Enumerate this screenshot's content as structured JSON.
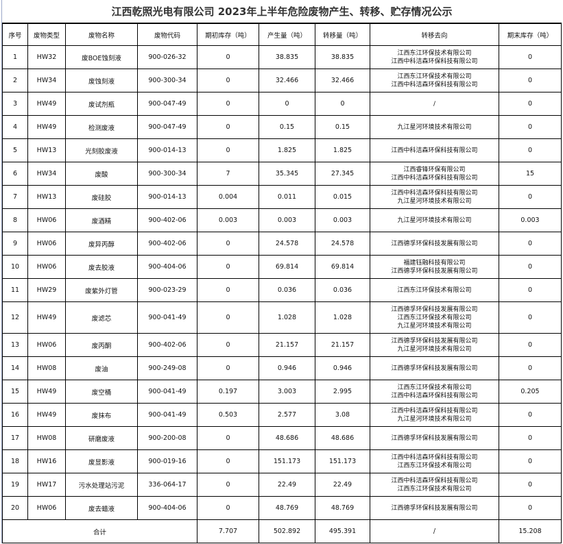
{
  "title": "江西乾照光电有限公司  2023年上半年危险废物产生、转移、贮存情况公示",
  "headers": [
    "序号",
    "废物类型",
    "废物名称",
    "废物代码",
    "期初库存（吨）",
    "产生量（吨）",
    "转移量（吨）",
    "转移去向",
    "期末库存（吨）"
  ],
  "rows": [
    {
      "no": "1",
      "type": "HW32",
      "name": "废BOE蚀刻液",
      "code": "900-026-32",
      "begin": "0",
      "produced": "38.835",
      "transferred": "38.835",
      "dest": [
        "江西东江环保技术有限公司",
        "江西中科洁森环保科技有限公司"
      ],
      "end": "0"
    },
    {
      "no": "2",
      "type": "HW34",
      "name": "废蚀刻液",
      "code": "900-300-34",
      "begin": "0",
      "produced": "32.466",
      "transferred": "32.466",
      "dest": [
        "江西东江环保技术有限公司",
        "江西中科洁森环保科技有限公司"
      ],
      "end": "0"
    },
    {
      "no": "3",
      "type": "HW49",
      "name": "废试剂瓶",
      "code": "900-047-49",
      "begin": "0",
      "produced": "0",
      "transferred": "0",
      "dest": [
        "/"
      ],
      "end": "0"
    },
    {
      "no": "4",
      "type": "HW49",
      "name": "检测废液",
      "code": "900-047-49",
      "begin": "0",
      "produced": "0.15",
      "transferred": "0.15",
      "dest": [
        "九江星河环境技术有限公司"
      ],
      "end": "0"
    },
    {
      "no": "5",
      "type": "HW13",
      "name": "光刻胶废液",
      "code": "900-014-13",
      "begin": "0",
      "produced": "1.825",
      "transferred": "1.825",
      "dest": [
        "江西中科洁森环保科技有限公司"
      ],
      "end": "0"
    },
    {
      "no": "6",
      "type": "HW34",
      "name": "废酸",
      "code": "900-300-34",
      "begin": "7",
      "produced": "35.345",
      "transferred": "27.345",
      "dest": [
        "江西睿锋环保有限公司",
        "江西中科洁森环保科技有限公司"
      ],
      "end": "15"
    },
    {
      "no": "7",
      "type": "HW13",
      "name": "废硅胶",
      "code": "900-014-13",
      "begin": "0.004",
      "produced": "0.011",
      "transferred": "0.015",
      "dest": [
        "江西中科洁森环保科技有限公司",
        "九江星河环境技术有限公司"
      ],
      "end": "0"
    },
    {
      "no": "8",
      "type": "HW06",
      "name": "废酒精",
      "code": "900-402-06",
      "begin": "0.003",
      "produced": "0.003",
      "transferred": "0.003",
      "dest": [
        "九江星河环境技术有限公司"
      ],
      "end": "0.003"
    },
    {
      "no": "9",
      "type": "HW06",
      "name": "废异丙醇",
      "code": "900-402-06",
      "begin": "0",
      "produced": "24.578",
      "transferred": "24.578",
      "dest": [
        "江西德孚环保科技发展有限公司"
      ],
      "end": "0"
    },
    {
      "no": "10",
      "type": "HW06",
      "name": "废去胶液",
      "code": "900-404-06",
      "begin": "0",
      "produced": "69.814",
      "transferred": "69.814",
      "dest": [
        "福建钰融科技有限公司",
        "江西德孚环保科技发展有限公司"
      ],
      "end": "0"
    },
    {
      "no": "11",
      "type": "HW29",
      "name": "废紫外灯管",
      "code": "900-023-29",
      "begin": "0",
      "produced": "0.036",
      "transferred": "0.036",
      "dest": [
        "江西东江环保技术有限公司"
      ],
      "end": "0"
    },
    {
      "no": "12",
      "type": "HW49",
      "name": "废滤芯",
      "code": "900-041-49",
      "begin": "0",
      "produced": "1.028",
      "transferred": "1.028",
      "dest": [
        "江西德孚环保科技发展有限公司",
        "江西东江环保技术有限公司",
        "九江星河环境技术有限公司"
      ],
      "end": "0"
    },
    {
      "no": "13",
      "type": "HW06",
      "name": "废丙酮",
      "code": "900-402-06",
      "begin": "0",
      "produced": "21.157",
      "transferred": "21.157",
      "dest": [
        "江西德孚环保科技发展有限公司",
        "九江星河环境技术有限公司"
      ],
      "end": "0"
    },
    {
      "no": "14",
      "type": "HW08",
      "name": "废油",
      "code": "900-249-08",
      "begin": "0",
      "produced": "0.946",
      "transferred": "0.946",
      "dest": [
        "江西德孚环保科技发展有限公司"
      ],
      "end": "0"
    },
    {
      "no": "15",
      "type": "HW49",
      "name": "废空桶",
      "code": "900-041-49",
      "begin": "0.197",
      "produced": "3.003",
      "transferred": "2.995",
      "dest": [
        "江西东江环保技术有限公司",
        "江西中科洁森环保科技有限公司"
      ],
      "end": "0.205"
    },
    {
      "no": "16",
      "type": "HW49",
      "name": "废抹布",
      "code": "900-041-49",
      "begin": "0.503",
      "produced": "2.577",
      "transferred": "3.08",
      "dest": [
        "江西中科洁森环保科技有限公司",
        "九江星河环境技术有限公司"
      ],
      "end": "0"
    },
    {
      "no": "17",
      "type": "HW08",
      "name": "研磨废液",
      "code": "900-200-08",
      "begin": "0",
      "produced": "48.686",
      "transferred": "48.686",
      "dest": [
        "江西德孚环保科技发展有限公司"
      ],
      "end": "0"
    },
    {
      "no": "18",
      "type": "HW16",
      "name": "废显影液",
      "code": "900-019-16",
      "begin": "0",
      "produced": "151.173",
      "transferred": "151.173",
      "dest": [
        "江西中科洁森环保科技有限公司",
        "江西东江环保技术有限公司"
      ],
      "end": "0"
    },
    {
      "no": "19",
      "type": "HW17",
      "name": "污水处理站污泥",
      "code": "336-064-17",
      "begin": "0",
      "produced": "22.49",
      "transferred": "22.49",
      "dest": [
        "江西中科洁森环保科技有限公司",
        "江西东江环保技术有限公司"
      ],
      "end": "0"
    },
    {
      "no": "20",
      "type": "HW06",
      "name": "废去蜡液",
      "code": "900-404-06",
      "begin": "0",
      "produced": "48.769",
      "transferred": "48.769",
      "dest": [
        "江西德孚环保科技发展有限公司"
      ],
      "end": "0"
    }
  ],
  "total": {
    "label": "合计",
    "begin": "7.707",
    "produced": "502.892",
    "transferred": "495.391",
    "dest": "/",
    "end": "15.208"
  }
}
